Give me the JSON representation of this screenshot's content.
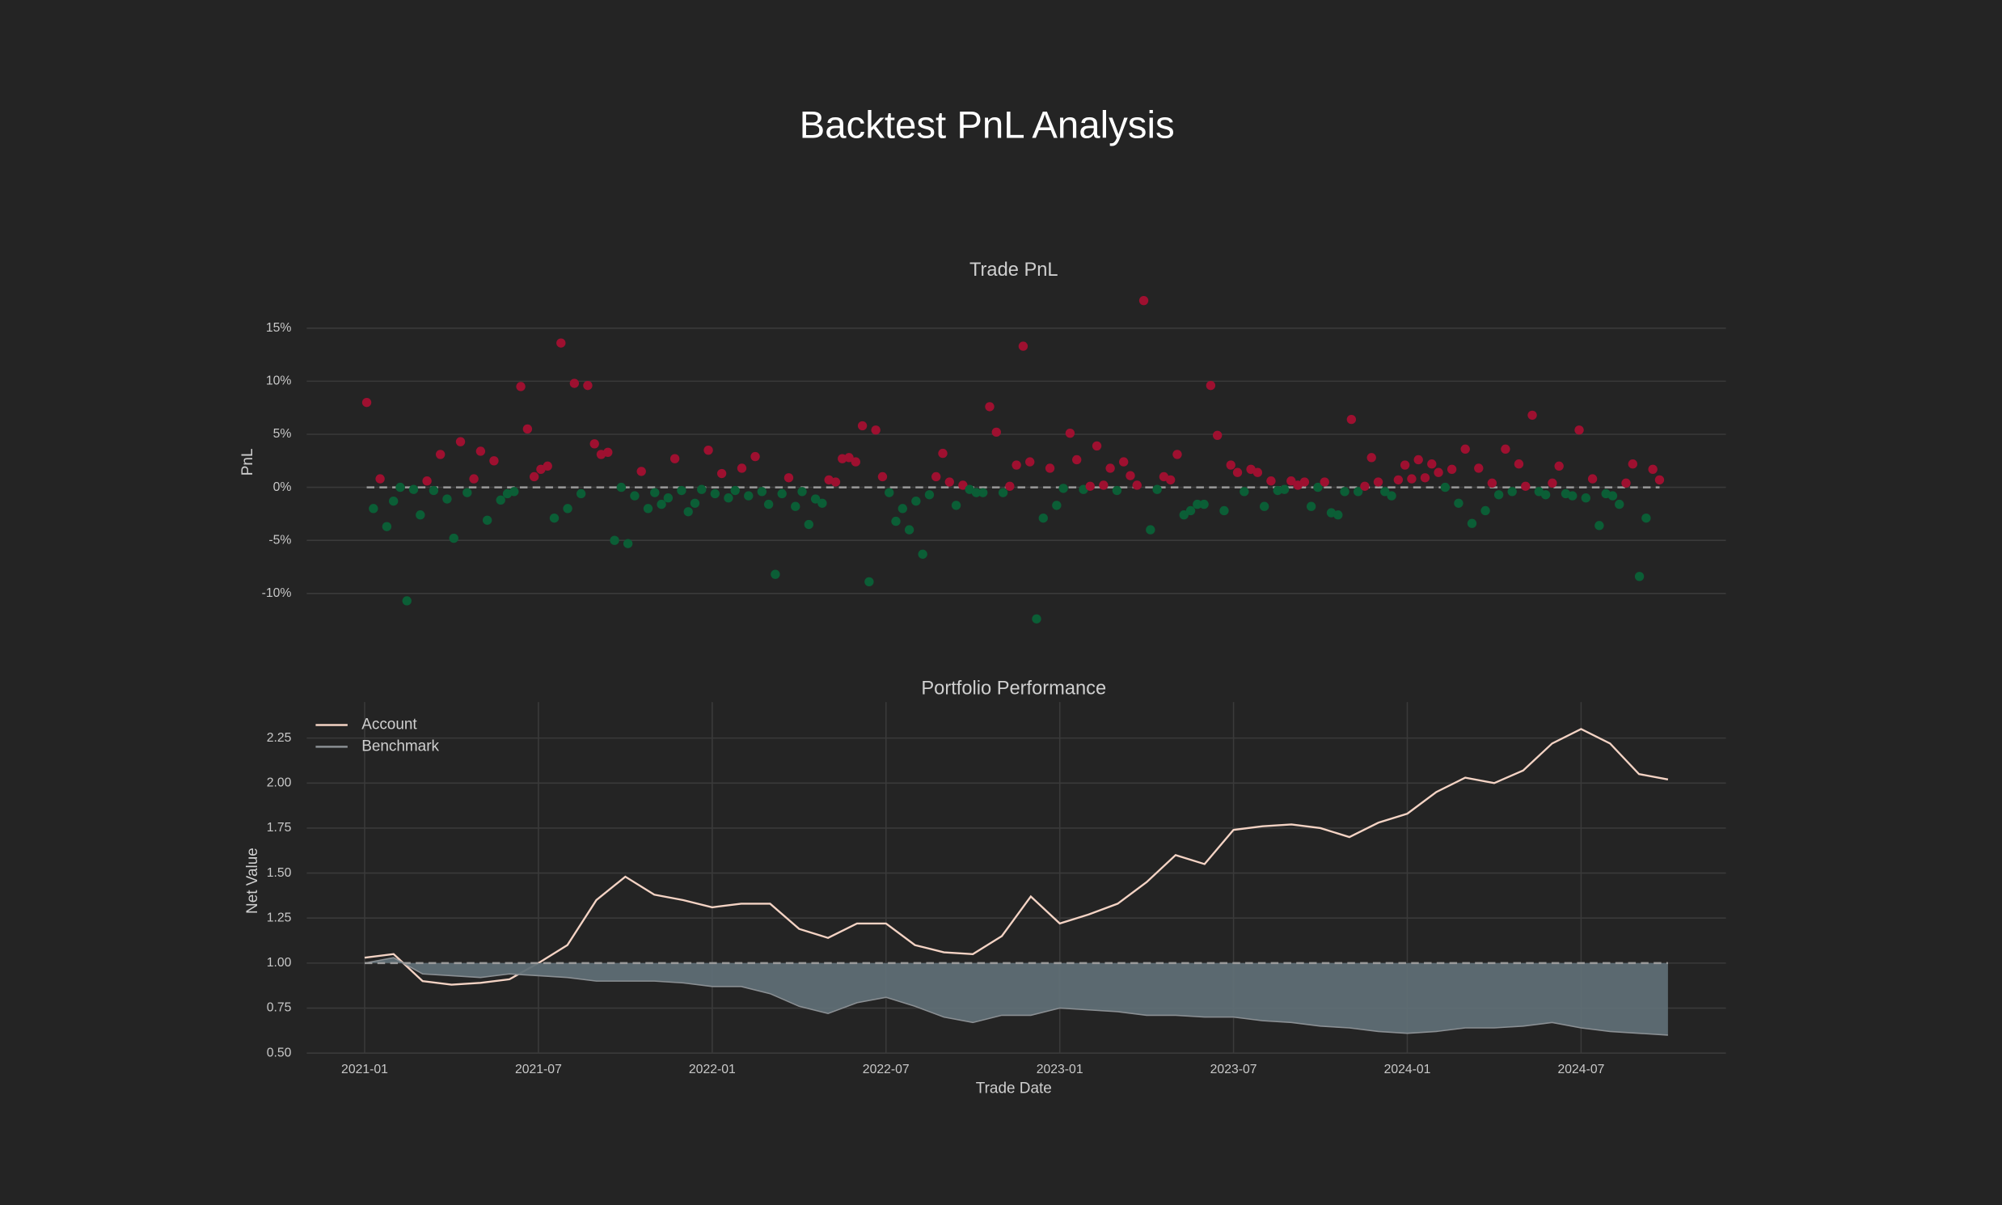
{
  "title": "Backtest PnL Analysis",
  "chart_data": [
    {
      "type": "scatter",
      "title": "Trade PnL",
      "y_label": "PnL",
      "values": [
        8.0,
        -2.0,
        0.8,
        -3.7,
        -1.3,
        0.0,
        -10.7,
        -0.2,
        -2.6,
        0.6,
        -0.3,
        3.1,
        -1.1,
        -4.8,
        4.3,
        -0.5,
        0.8,
        3.4,
        -3.1,
        2.5,
        -1.2,
        -0.6,
        -0.4,
        9.5,
        5.5,
        1.0,
        1.7,
        2.0,
        -2.9,
        13.6,
        -2.0,
        9.8,
        -0.6,
        9.6,
        4.1,
        3.1,
        3.3,
        -5.0,
        0.0,
        -5.3,
        -0.8,
        1.5,
        -2.0,
        -0.5,
        -1.6,
        -1.0,
        2.7,
        -0.3,
        -2.3,
        -1.5,
        -0.2,
        3.5,
        -0.6,
        1.3,
        -1.0,
        -0.3,
        1.8,
        -0.8,
        2.9,
        -0.4,
        -1.6,
        -8.2,
        -0.6,
        0.9,
        -1.8,
        -0.4,
        -3.5,
        -1.1,
        -1.5,
        0.7,
        0.5,
        2.7,
        2.8,
        2.4,
        5.8,
        -8.9,
        5.4,
        1.0,
        -0.5,
        -3.2,
        -2.0,
        -4.0,
        -1.3,
        -6.3,
        -0.7,
        1.0,
        3.2,
        0.5,
        -1.7,
        0.2,
        -0.2,
        -0.5,
        -0.5,
        7.6,
        5.2,
        -0.5,
        0.1,
        2.1,
        13.3,
        2.4,
        -12.4,
        -2.9,
        1.8,
        -1.7,
        -0.1,
        5.1,
        2.6,
        -0.2,
        0.1,
        3.9,
        0.2,
        1.8,
        -0.3,
        2.4,
        1.1,
        0.2,
        17.6,
        -4.0,
        -0.2,
        1.0,
        0.7,
        3.1,
        -2.6,
        -2.2,
        -1.6,
        -1.6,
        9.6,
        4.9,
        -2.2,
        2.1,
        1.4,
        -0.4,
        1.7,
        1.4,
        -1.8,
        0.6,
        -0.3,
        -0.2,
        0.6,
        0.2,
        0.5,
        -1.8,
        0.0,
        0.5,
        -2.4,
        -2.6,
        -0.4,
        6.4,
        -0.4,
        0.1,
        2.8,
        0.5,
        -0.4,
        -0.8,
        0.7,
        2.1,
        0.8,
        2.6,
        0.9,
        2.2,
        1.4,
        0.0,
        1.7,
        -1.5,
        3.6,
        -3.4,
        1.8,
        -2.2,
        0.4,
        -0.7,
        3.6,
        -0.4,
        2.2,
        0.1,
        6.8,
        -0.4,
        -0.7,
        0.4,
        2.0,
        -0.6,
        -0.8,
        5.4,
        -1.0,
        0.8,
        -3.6,
        -0.6,
        -0.8,
        -1.6,
        0.4,
        2.2,
        -8.4,
        -2.9,
        1.7,
        0.7
      ],
      "positive_color": "#9e1030",
      "negative_color": "#0b5e36",
      "ylim": [
        -13.5,
        18.5
      ],
      "yticks": [
        {
          "value": -10,
          "label": "-10%"
        },
        {
          "value": -5,
          "label": "-5%"
        },
        {
          "value": 0,
          "label": "0%"
        },
        {
          "value": 5,
          "label": "5%"
        },
        {
          "value": 10,
          "label": "10%"
        },
        {
          "value": 15,
          "label": "15%"
        }
      ],
      "grid": true,
      "reference_line": 0
    },
    {
      "type": "line",
      "title": "Portfolio Performance",
      "x_label": "Trade Date",
      "y_label": "Net Value",
      "x": [
        "2021-01",
        "2021-02",
        "2021-03",
        "2021-04",
        "2021-05",
        "2021-06",
        "2021-07",
        "2021-08",
        "2021-09",
        "2021-10",
        "2021-11",
        "2021-12",
        "2022-01",
        "2022-02",
        "2022-03",
        "2022-04",
        "2022-05",
        "2022-06",
        "2022-07",
        "2022-08",
        "2022-09",
        "2022-10",
        "2022-11",
        "2022-12",
        "2023-01",
        "2023-02",
        "2023-03",
        "2023-04",
        "2023-05",
        "2023-06",
        "2023-07",
        "2023-08",
        "2023-09",
        "2023-10",
        "2023-11",
        "2023-12",
        "2024-01",
        "2024-02",
        "2024-03",
        "2024-04",
        "2024-05",
        "2024-06",
        "2024-07",
        "2024-08",
        "2024-09",
        "2024-10"
      ],
      "series": [
        {
          "name": "Account",
          "color": "#f4d3c4",
          "values": [
            1.03,
            1.05,
            0.9,
            0.88,
            0.89,
            0.91,
            1.0,
            1.1,
            1.35,
            1.48,
            1.38,
            1.35,
            1.31,
            1.33,
            1.33,
            1.19,
            1.14,
            1.22,
            1.22,
            1.1,
            1.06,
            1.05,
            1.15,
            1.37,
            1.22,
            1.27,
            1.33,
            1.45,
            1.6,
            1.55,
            1.74,
            1.76,
            1.77,
            1.75,
            1.7,
            1.78,
            1.83,
            1.95,
            2.03,
            2.0,
            2.07,
            2.22,
            2.3,
            2.22,
            2.05,
            2.02
          ]
        },
        {
          "name": "Benchmark",
          "color": "#8a8f93",
          "fill": "#5f6e75",
          "values": [
            1.0,
            1.03,
            0.94,
            0.93,
            0.92,
            0.94,
            0.93,
            0.92,
            0.9,
            0.9,
            0.9,
            0.89,
            0.87,
            0.87,
            0.83,
            0.76,
            0.72,
            0.78,
            0.81,
            0.76,
            0.7,
            0.67,
            0.71,
            0.71,
            0.75,
            0.74,
            0.73,
            0.71,
            0.71,
            0.7,
            0.7,
            0.68,
            0.67,
            0.65,
            0.64,
            0.62,
            0.61,
            0.62,
            0.64,
            0.64,
            0.65,
            0.67,
            0.64,
            0.62,
            0.61,
            0.6
          ]
        }
      ],
      "xlim": [
        "2020-11",
        "2024-12"
      ],
      "xticks": [
        "2021-01",
        "2021-07",
        "2022-01",
        "2022-07",
        "2023-01",
        "2023-07",
        "2024-01",
        "2024-07"
      ],
      "ylim": [
        0.5,
        2.45
      ],
      "yticks": [
        {
          "value": 0.5,
          "label": "0.50"
        },
        0.75,
        {
          "value": 1,
          "label": "1.00"
        },
        1.25,
        {
          "value": 1.5,
          "label": "1.50"
        },
        1.75,
        {
          "value": 2,
          "label": "2.00"
        },
        2.25
      ],
      "grid": true,
      "legend": "upper left",
      "reference_line": 1
    }
  ]
}
